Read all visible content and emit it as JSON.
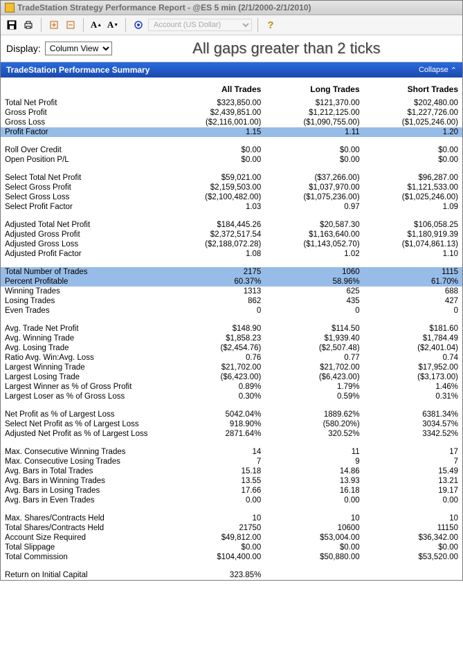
{
  "window": {
    "title": "TradeStation Strategy Performance Report - @ES 5 min (2/1/2000-2/1/2010)"
  },
  "toolbar": {
    "account_placeholder": "Account (US Dollar)"
  },
  "display": {
    "label": "Display:",
    "view": "Column View",
    "headline": "All gaps greater than 2 ticks"
  },
  "summary": {
    "title": "TradeStation Performance Summary",
    "collapse_label": "Collapse"
  },
  "columns": {
    "c0": "",
    "c1": "All Trades",
    "c2": "Long Trades",
    "c3": "Short Trades"
  },
  "rows": [
    {
      "type": "row",
      "label": "Total Net Profit",
      "v": [
        "$323,850.00",
        "$121,370.00",
        "$202,480.00"
      ],
      "neg": [
        false,
        false,
        false
      ]
    },
    {
      "type": "row",
      "label": "Gross Profit",
      "v": [
        "$2,439,851.00",
        "$1,212,125.00",
        "$1,227,726.00"
      ],
      "neg": [
        false,
        false,
        false
      ]
    },
    {
      "type": "row",
      "label": "Gross Loss",
      "v": [
        "($2,116,001.00)",
        "($1,090,755.00)",
        "($1,025,246.00)"
      ],
      "neg": [
        true,
        true,
        true
      ]
    },
    {
      "type": "hl",
      "label": "Profit Factor",
      "v": [
        "1.15",
        "1.11",
        "1.20"
      ],
      "neg": [
        false,
        false,
        false
      ]
    },
    {
      "type": "spacer"
    },
    {
      "type": "row",
      "label": "Roll Over Credit",
      "v": [
        "$0.00",
        "$0.00",
        "$0.00"
      ],
      "neg": [
        false,
        false,
        false
      ]
    },
    {
      "type": "row",
      "label": "Open Position P/L",
      "v": [
        "$0.00",
        "$0.00",
        "$0.00"
      ],
      "neg": [
        false,
        false,
        false
      ]
    },
    {
      "type": "spacer"
    },
    {
      "type": "row",
      "label": "Select Total Net Profit",
      "v": [
        "$59,021.00",
        "($37,266.00)",
        "$96,287.00"
      ],
      "neg": [
        false,
        true,
        false
      ]
    },
    {
      "type": "row",
      "label": "Select Gross Profit",
      "v": [
        "$2,159,503.00",
        "$1,037,970.00",
        "$1,121,533.00"
      ],
      "neg": [
        false,
        false,
        false
      ]
    },
    {
      "type": "row",
      "label": "Select Gross Loss",
      "v": [
        "($2,100,482.00)",
        "($1,075,236.00)",
        "($1,025,246.00)"
      ],
      "neg": [
        true,
        true,
        true
      ]
    },
    {
      "type": "row",
      "label": "Select Profit Factor",
      "v": [
        "1.03",
        "0.97",
        "1.09"
      ],
      "neg": [
        false,
        false,
        false
      ]
    },
    {
      "type": "spacer"
    },
    {
      "type": "row",
      "label": "Adjusted Total Net Profit",
      "v": [
        "$184,445.26",
        "$20,587.30",
        "$106,058.25"
      ],
      "neg": [
        false,
        false,
        false
      ]
    },
    {
      "type": "row",
      "label": "Adjusted Gross Profit",
      "v": [
        "$2,372,517.54",
        "$1,163,640.00",
        "$1,180,919.39"
      ],
      "neg": [
        false,
        false,
        false
      ]
    },
    {
      "type": "row",
      "label": "Adjusted Gross Loss",
      "v": [
        "($2,188,072.28)",
        "($1,143,052.70)",
        "($1,074,861.13)"
      ],
      "neg": [
        true,
        true,
        true
      ]
    },
    {
      "type": "row",
      "label": "Adjusted Profit Factor",
      "v": [
        "1.08",
        "1.02",
        "1.10"
      ],
      "neg": [
        false,
        false,
        false
      ]
    },
    {
      "type": "spacer"
    },
    {
      "type": "hl",
      "label": "Total Number of Trades",
      "v": [
        "2175",
        "1060",
        "1115"
      ],
      "neg": [
        false,
        false,
        false
      ]
    },
    {
      "type": "hl",
      "label": "Percent Profitable",
      "v": [
        "60.37%",
        "58.96%",
        "61.70%"
      ],
      "neg": [
        false,
        false,
        false
      ]
    },
    {
      "type": "row",
      "label": "Winning Trades",
      "v": [
        "1313",
        "625",
        "688"
      ],
      "neg": [
        false,
        false,
        false
      ]
    },
    {
      "type": "row",
      "label": "Losing Trades",
      "v": [
        "862",
        "435",
        "427"
      ],
      "neg": [
        false,
        false,
        false
      ]
    },
    {
      "type": "row",
      "label": "Even Trades",
      "v": [
        "0",
        "0",
        "0"
      ],
      "neg": [
        false,
        false,
        false
      ]
    },
    {
      "type": "spacer"
    },
    {
      "type": "row",
      "label": "Avg. Trade Net Profit",
      "v": [
        "$148.90",
        "$114.50",
        "$181.60"
      ],
      "neg": [
        false,
        false,
        false
      ]
    },
    {
      "type": "row",
      "label": "Avg. Winning Trade",
      "v": [
        "$1,858.23",
        "$1,939.40",
        "$1,784.49"
      ],
      "neg": [
        false,
        false,
        false
      ]
    },
    {
      "type": "row",
      "label": "Avg. Losing Trade",
      "v": [
        "($2,454.76)",
        "($2,507.48)",
        "($2,401.04)"
      ],
      "neg": [
        true,
        true,
        true
      ]
    },
    {
      "type": "row",
      "label": "Ratio Avg. Win:Avg. Loss",
      "v": [
        "0.76",
        "0.77",
        "0.74"
      ],
      "neg": [
        false,
        false,
        false
      ]
    },
    {
      "type": "row",
      "label": "Largest Winning Trade",
      "v": [
        "$21,702.00",
        "$21,702.00",
        "$17,952.00"
      ],
      "neg": [
        false,
        false,
        false
      ]
    },
    {
      "type": "row",
      "label": "Largest Losing Trade",
      "v": [
        "($6,423.00)",
        "($6,423.00)",
        "($3,173.00)"
      ],
      "neg": [
        true,
        true,
        true
      ]
    },
    {
      "type": "row",
      "label": "Largest Winner as % of Gross Profit",
      "v": [
        "0.89%",
        "1.79%",
        "1.46%"
      ],
      "neg": [
        false,
        false,
        false
      ]
    },
    {
      "type": "row",
      "label": "Largest Loser as % of Gross Loss",
      "v": [
        "0.30%",
        "0.59%",
        "0.31%"
      ],
      "neg": [
        false,
        false,
        false
      ]
    },
    {
      "type": "spacer"
    },
    {
      "type": "row",
      "label": "Net Profit as % of Largest Loss",
      "v": [
        "5042.04%",
        "1889.62%",
        "6381.34%"
      ],
      "neg": [
        false,
        false,
        false
      ]
    },
    {
      "type": "row",
      "label": "Select Net Profit as % of Largest Loss",
      "v": [
        "918.90%",
        "(580.20%)",
        "3034.57%"
      ],
      "neg": [
        false,
        true,
        false
      ]
    },
    {
      "type": "row",
      "label": "Adjusted Net Profit as % of Largest Loss",
      "v": [
        "2871.64%",
        "320.52%",
        "3342.52%"
      ],
      "neg": [
        false,
        false,
        false
      ]
    },
    {
      "type": "spacer"
    },
    {
      "type": "row",
      "label": "Max. Consecutive Winning Trades",
      "v": [
        "14",
        "11",
        "17"
      ],
      "neg": [
        false,
        false,
        false
      ]
    },
    {
      "type": "row",
      "label": "Max. Consecutive Losing Trades",
      "v": [
        "7",
        "9",
        "7"
      ],
      "neg": [
        false,
        false,
        false
      ]
    },
    {
      "type": "row",
      "label": "Avg. Bars in Total Trades",
      "v": [
        "15.18",
        "14.86",
        "15.49"
      ],
      "neg": [
        false,
        false,
        false
      ]
    },
    {
      "type": "row",
      "label": "Avg. Bars in Winning Trades",
      "v": [
        "13.55",
        "13.93",
        "13.21"
      ],
      "neg": [
        false,
        false,
        false
      ]
    },
    {
      "type": "row",
      "label": "Avg. Bars in Losing Trades",
      "v": [
        "17.66",
        "16.18",
        "19.17"
      ],
      "neg": [
        false,
        false,
        false
      ]
    },
    {
      "type": "row",
      "label": "Avg. Bars in Even Trades",
      "v": [
        "0.00",
        "0.00",
        "0.00"
      ],
      "neg": [
        false,
        false,
        false
      ]
    },
    {
      "type": "spacer"
    },
    {
      "type": "row",
      "label": "Max. Shares/Contracts Held",
      "v": [
        "10",
        "10",
        "10"
      ],
      "neg": [
        false,
        false,
        false
      ]
    },
    {
      "type": "row",
      "label": "Total Shares/Contracts Held",
      "v": [
        "21750",
        "10600",
        "11150"
      ],
      "neg": [
        false,
        false,
        false
      ]
    },
    {
      "type": "row",
      "label": "Account Size Required",
      "v": [
        "$49,812.00",
        "$53,004.00",
        "$36,342.00"
      ],
      "neg": [
        false,
        false,
        false
      ]
    },
    {
      "type": "row",
      "label": "Total Slippage",
      "v": [
        "$0.00",
        "$0.00",
        "$0.00"
      ],
      "neg": [
        false,
        false,
        false
      ]
    },
    {
      "type": "row",
      "label": "Total Commission",
      "v": [
        "$104,400.00",
        "$50,880.00",
        "$53,520.00"
      ],
      "neg": [
        false,
        false,
        false
      ]
    },
    {
      "type": "spacer"
    },
    {
      "type": "row",
      "label": "Return on Initial Capital",
      "v": [
        "323.85%",
        "",
        ""
      ],
      "neg": [
        false,
        false,
        false
      ]
    }
  ]
}
